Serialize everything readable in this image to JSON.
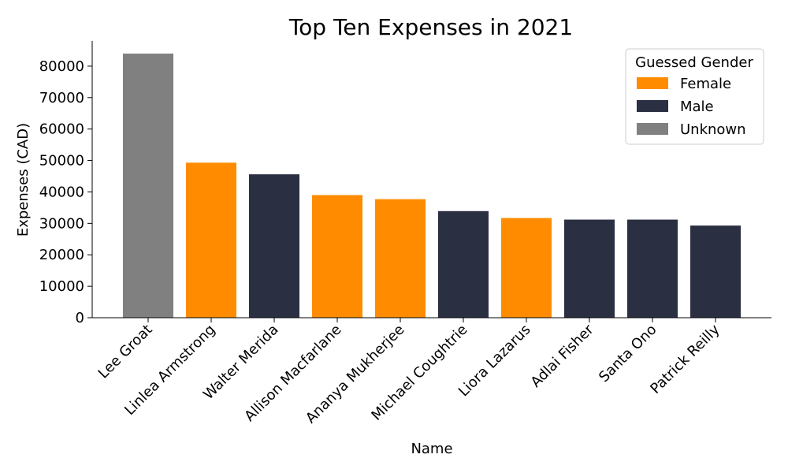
{
  "chart_data": {
    "type": "bar",
    "title": "Top Ten Expenses in 2021",
    "xlabel": "Name",
    "ylabel": "Expenses (CAD)",
    "ylim": [
      0,
      88000
    ],
    "yticks": [
      0,
      10000,
      20000,
      30000,
      40000,
      50000,
      60000,
      70000,
      80000
    ],
    "categories": [
      "Lee Groat",
      "Linlea Armstrong",
      "Walter Merida",
      "Allison Macfarlane",
      "Ananya Mukherjee",
      "Michael Coughtrie",
      "Liora Lazarus",
      "Adlai Fisher",
      "Santa Ono",
      "Patrick Reilly"
    ],
    "values": [
      84000,
      49300,
      45600,
      39000,
      37700,
      33900,
      31700,
      31200,
      31200,
      29300
    ],
    "groups": [
      "Unknown",
      "Female",
      "Male",
      "Female",
      "Female",
      "Male",
      "Female",
      "Male",
      "Male",
      "Male"
    ],
    "legend": {
      "title": "Guessed Gender",
      "position": "top-right",
      "entries": [
        {
          "label": "Female",
          "color": "#ff8c00"
        },
        {
          "label": "Male",
          "color": "#2a2f42"
        },
        {
          "label": "Unknown",
          "color": "#808080"
        }
      ]
    },
    "grid": false
  }
}
